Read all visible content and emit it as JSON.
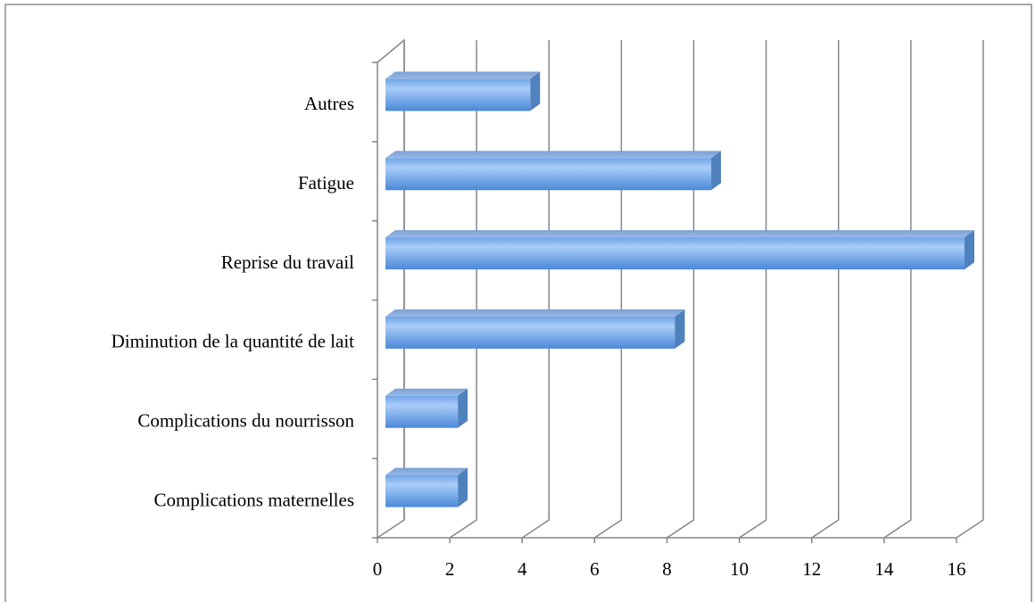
{
  "chart_data": {
    "type": "bar3d_horizontal",
    "categories": [
      "Autres",
      "Fatigue",
      "Reprise du travail",
      "Diminution de la quantité de lait",
      "Complications du nourrisson",
      "Complications maternelles"
    ],
    "values": [
      4,
      9,
      16,
      8,
      2,
      2
    ],
    "color": "#4f81bd",
    "xlim": [
      0,
      16
    ],
    "xticks": [
      0,
      2,
      4,
      6,
      8,
      10,
      12,
      14,
      16
    ],
    "grid": true
  }
}
